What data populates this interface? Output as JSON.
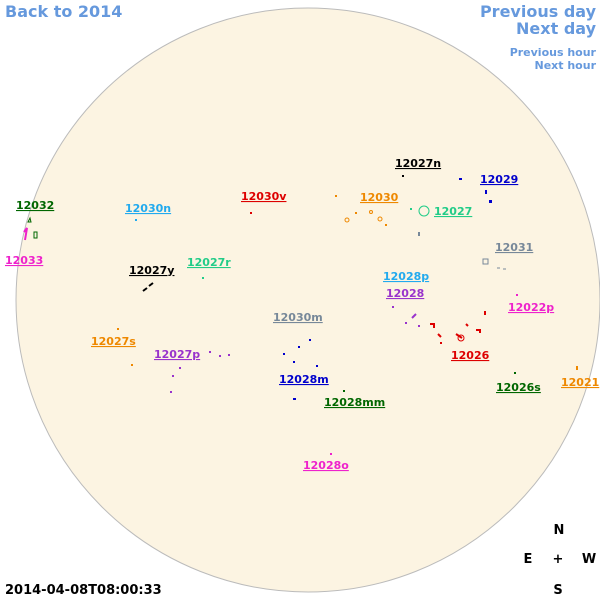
{
  "nav": {
    "back": "Back to 2014",
    "previous_day": "Previous day",
    "next_day": "Next day",
    "previous_hour": "Previous hour",
    "next_hour": "Next hour"
  },
  "regions": [
    "12027n",
    "12029",
    "12032",
    "12030n",
    "12030v",
    "12030",
    "12027",
    "12033",
    "12031",
    "12027y",
    "12027r",
    "12028p",
    "12028",
    "12022p",
    "12030m",
    "12027s",
    "12027p",
    "12026",
    "12028m",
    "12026s",
    "12021",
    "12028mm",
    "12028o"
  ],
  "compass": {
    "north": "N",
    "east": "E",
    "center": "+",
    "west": "W",
    "south": "S"
  },
  "timestamp": "2014-04-08T08:00:33"
}
